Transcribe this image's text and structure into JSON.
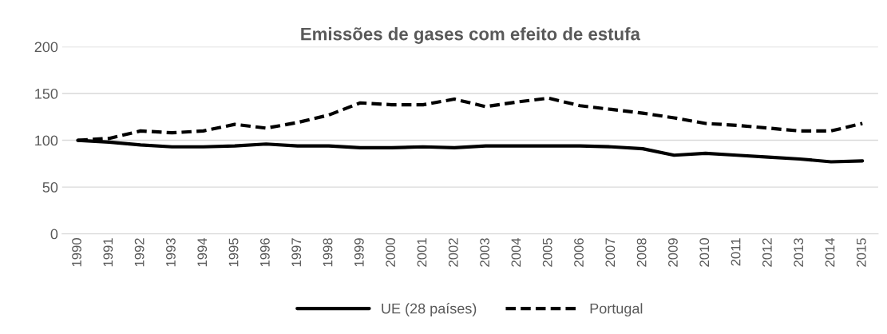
{
  "chart_data": {
    "type": "line",
    "title": "Emissões de gases com efeito de estufa",
    "categories": [
      "1990",
      "1991",
      "1992",
      "1993",
      "1994",
      "1995",
      "1996",
      "1997",
      "1998",
      "1999",
      "2000",
      "2001",
      "2002",
      "2003",
      "2004",
      "2005",
      "2006",
      "2007",
      "2008",
      "2009",
      "2010",
      "2011",
      "2012",
      "2013",
      "2014",
      "2015"
    ],
    "series": [
      {
        "name": "UE (28 países)",
        "color": "#000000",
        "line_style": "solid",
        "values": [
          100,
          98,
          95,
          93,
          93,
          94,
          96,
          94,
          94,
          92,
          92,
          93,
          92,
          94,
          94,
          94,
          94,
          93,
          91,
          84,
          86,
          84,
          82,
          80,
          77,
          78
        ]
      },
      {
        "name": "Portugal",
        "color": "#000000",
        "line_style": "dashed",
        "values": [
          100,
          102,
          110,
          108,
          110,
          117,
          113,
          119,
          127,
          140,
          138,
          138,
          144,
          136,
          141,
          145,
          137,
          133,
          129,
          124,
          118,
          116,
          113,
          110,
          110,
          118
        ]
      }
    ],
    "ylim": [
      0,
      200
    ],
    "yticks": [
      0,
      50,
      100,
      150,
      200
    ],
    "grid": "y",
    "legend": "bottom"
  }
}
